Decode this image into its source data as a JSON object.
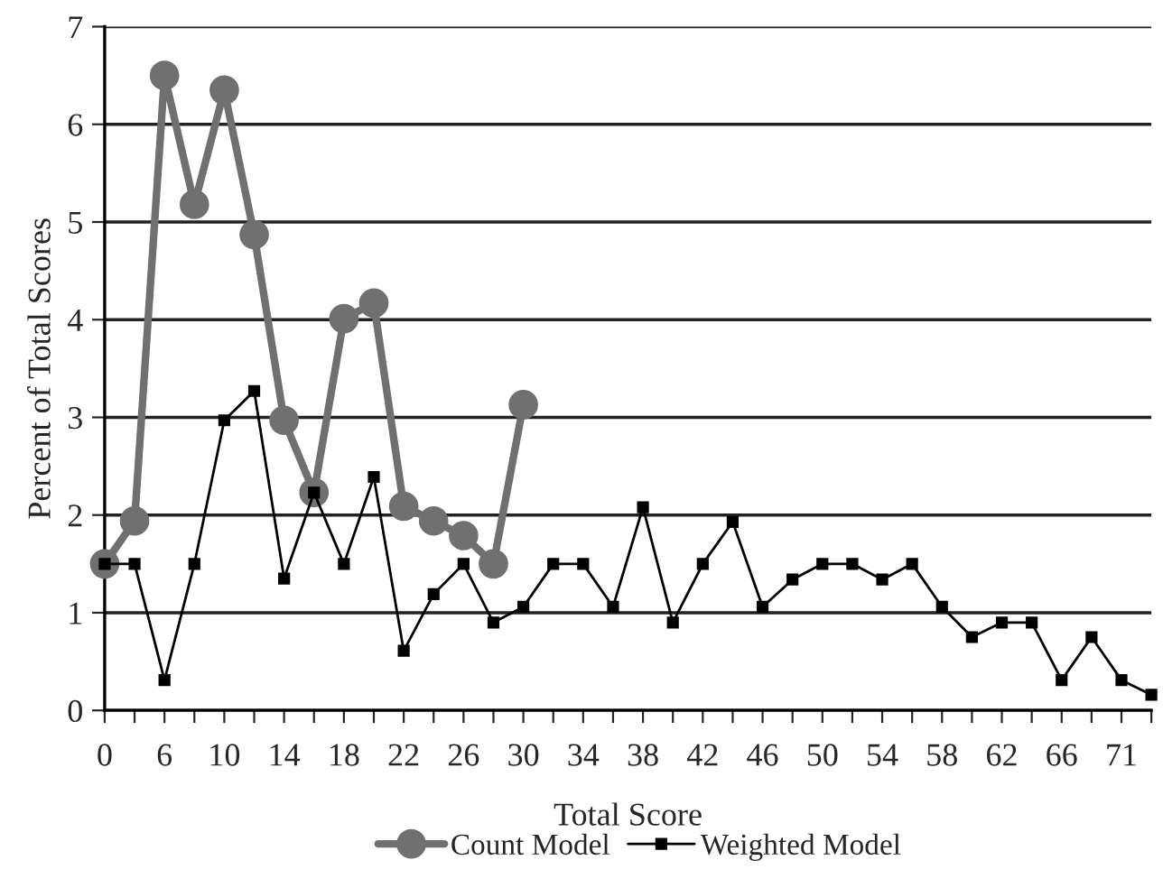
{
  "chart_data": {
    "type": "line",
    "xlabel": "Total Score",
    "ylabel": "Percent of Total Scores",
    "categories": [
      "0",
      null,
      "6",
      null,
      "10",
      null,
      "14",
      null,
      "18",
      null,
      "22",
      null,
      "26",
      null,
      "30",
      null,
      "34",
      null,
      "38",
      null,
      "42",
      null,
      "46",
      null,
      "50",
      null,
      "54",
      null,
      "58",
      null,
      "62",
      null,
      "66",
      null,
      "71",
      null
    ],
    "series": [
      {
        "name": "Count Model",
        "color": "#707070",
        "marker": "circle",
        "values": [
          1.5,
          1.94,
          6.5,
          5.18,
          6.35,
          4.87,
          2.97,
          2.23,
          4.01,
          4.17,
          2.09,
          1.94,
          1.79,
          1.5,
          3.13,
          null,
          null,
          null,
          null,
          null,
          null,
          null,
          null,
          null,
          null,
          null,
          null,
          null,
          null,
          null,
          null,
          null,
          null,
          null,
          null,
          null
        ]
      },
      {
        "name": "Weighted Model",
        "color": "#000000",
        "marker": "square",
        "values": [
          1.5,
          1.5,
          0.31,
          1.5,
          2.97,
          3.27,
          1.35,
          2.23,
          1.5,
          2.39,
          0.61,
          1.19,
          1.5,
          0.9,
          1.06,
          1.5,
          1.5,
          1.06,
          2.08,
          0.9,
          1.5,
          1.93,
          1.06,
          1.34,
          1.5,
          1.5,
          1.34,
          1.5,
          1.06,
          0.75,
          0.9,
          0.9,
          0.31,
          0.75,
          0.31,
          0.16
        ]
      }
    ],
    "ylim": [
      0,
      7
    ],
    "yticks": [
      0,
      1,
      2,
      3,
      4,
      5,
      6,
      7
    ],
    "grid": "y",
    "legend": "bottom",
    "line_style": "solid"
  }
}
